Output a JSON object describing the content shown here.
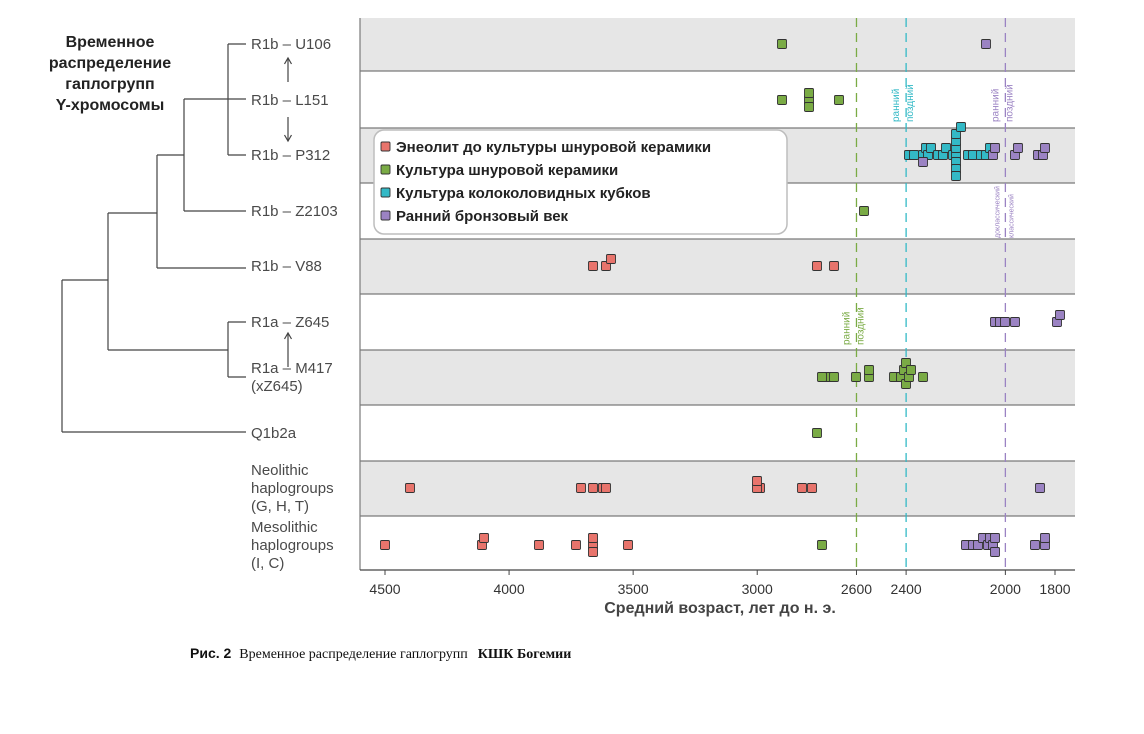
{
  "figure": {
    "caption_label": "Рис. 2",
    "caption_text": "Временное распределение гаплогрупп",
    "caption_tail": "КШК Богемии"
  },
  "chart_data": {
    "type": "scatter",
    "title": "Временное распределение гаплогрупп Y-хромосомы",
    "title_lines": [
      "Временное",
      "распределение",
      "гаплогрупп",
      "Y-хромосомы"
    ],
    "xlabel": "Средний возраст, лет до н. э.",
    "ylabel": "",
    "xlim": [
      4600,
      1700
    ],
    "x_reversed": true,
    "x_ticks": [
      4500,
      4000,
      3500,
      3000,
      2600,
      2400,
      2000,
      1800
    ],
    "grid": false,
    "legend_position": "upper-left",
    "rows": [
      {
        "key": "u106",
        "lines": [
          "R1b – U106"
        ]
      },
      {
        "key": "l151",
        "lines": [
          "R1b – L151"
        ]
      },
      {
        "key": "p312",
        "lines": [
          "R1b – P312"
        ]
      },
      {
        "key": "z2103",
        "lines": [
          "R1b – Z2103"
        ]
      },
      {
        "key": "v88",
        "lines": [
          "R1b – V88"
        ]
      },
      {
        "key": "z645",
        "lines": [
          "R1a – Z645"
        ]
      },
      {
        "key": "m417",
        "lines": [
          "R1a – M417",
          "(xZ645)"
        ]
      },
      {
        "key": "q1b2a",
        "lines": [
          "Q1b2a"
        ]
      },
      {
        "key": "neo",
        "lines": [
          "Neolithic",
          "haplogroups",
          "(G, H, T)"
        ]
      },
      {
        "key": "meso",
        "lines": [
          "Mesolithic",
          "haplogroups",
          "(I, C)"
        ]
      }
    ],
    "series": [
      {
        "name": "Энеолит до культуры шнуровой керамики",
        "color": "#e8746c",
        "points": [
          {
            "row": "v88",
            "x": 3660
          },
          {
            "row": "v88",
            "x": 3610
          },
          {
            "row": "v88",
            "x": 3590
          },
          {
            "row": "v88",
            "x": 2760
          },
          {
            "row": "v88",
            "x": 2690
          },
          {
            "row": "neo",
            "x": 4400
          },
          {
            "row": "neo",
            "x": 3710
          },
          {
            "row": "neo",
            "x": 3660
          },
          {
            "row": "neo",
            "x": 3620
          },
          {
            "row": "neo",
            "x": 3610
          },
          {
            "row": "neo",
            "x": 2990
          },
          {
            "row": "neo",
            "x": 3000
          },
          {
            "row": "neo",
            "x": 3000
          },
          {
            "row": "neo",
            "x": 2820
          },
          {
            "row": "neo",
            "x": 2780
          },
          {
            "row": "meso",
            "x": 4500
          },
          {
            "row": "meso",
            "x": 4110
          },
          {
            "row": "meso",
            "x": 4100
          },
          {
            "row": "meso",
            "x": 3880
          },
          {
            "row": "meso",
            "x": 3730
          },
          {
            "row": "meso",
            "x": 3660
          },
          {
            "row": "meso",
            "x": 3660
          },
          {
            "row": "meso",
            "x": 3660
          },
          {
            "row": "meso",
            "x": 3520
          }
        ]
      },
      {
        "name": "Культура шнуровой керамики",
        "color": "#7aab45",
        "points": [
          {
            "row": "u106",
            "x": 2900
          },
          {
            "row": "l151",
            "x": 2900
          },
          {
            "row": "l151",
            "x": 2790
          },
          {
            "row": "l151",
            "x": 2790
          },
          {
            "row": "l151",
            "x": 2790
          },
          {
            "row": "l151",
            "x": 2670
          },
          {
            "row": "z2103",
            "x": 2570
          },
          {
            "row": "m417",
            "x": 2720
          },
          {
            "row": "m417",
            "x": 2740
          },
          {
            "row": "m417",
            "x": 2690
          },
          {
            "row": "m417",
            "x": 2600
          },
          {
            "row": "m417",
            "x": 2550
          },
          {
            "row": "m417",
            "x": 2550
          },
          {
            "row": "m417",
            "x": 2450
          },
          {
            "row": "m417",
            "x": 2420
          },
          {
            "row": "m417",
            "x": 2410
          },
          {
            "row": "m417",
            "x": 2400
          },
          {
            "row": "m417",
            "x": 2390
          },
          {
            "row": "m417",
            "x": 2400
          },
          {
            "row": "m417",
            "x": 2380
          },
          {
            "row": "m417",
            "x": 2330
          },
          {
            "row": "q1b2a",
            "x": 2760
          },
          {
            "row": "meso",
            "x": 2740
          }
        ]
      },
      {
        "name": "Культура колоколовидных кубков",
        "color": "#33b9c6",
        "points": [
          {
            "row": "p312",
            "x": 2390
          },
          {
            "row": "p312",
            "x": 2370
          },
          {
            "row": "p312",
            "x": 2330
          },
          {
            "row": "p312",
            "x": 2320
          },
          {
            "row": "p312",
            "x": 2310
          },
          {
            "row": "p312",
            "x": 2300
          },
          {
            "row": "p312",
            "x": 2270
          },
          {
            "row": "p312",
            "x": 2250
          },
          {
            "row": "p312",
            "x": 2240
          },
          {
            "row": "p312",
            "x": 2210
          },
          {
            "row": "p312",
            "x": 2200
          },
          {
            "row": "p312",
            "x": 2200
          },
          {
            "row": "p312",
            "x": 2200
          },
          {
            "row": "p312",
            "x": 2200
          },
          {
            "row": "p312",
            "x": 2200
          },
          {
            "row": "p312",
            "x": 2200
          },
          {
            "row": "p312",
            "x": 2200
          },
          {
            "row": "p312",
            "x": 2180
          },
          {
            "row": "p312",
            "x": 2150
          },
          {
            "row": "p312",
            "x": 2130
          },
          {
            "row": "p312",
            "x": 2100
          },
          {
            "row": "p312",
            "x": 2080
          },
          {
            "row": "p312",
            "x": 2060
          }
        ]
      },
      {
        "name": "Ранний бронзовый век",
        "color": "#9b83c3",
        "points": [
          {
            "row": "u106",
            "x": 2080
          },
          {
            "row": "p312",
            "x": 2330
          },
          {
            "row": "p312",
            "x": 2050
          },
          {
            "row": "p312",
            "x": 2040
          },
          {
            "row": "p312",
            "x": 1960
          },
          {
            "row": "p312",
            "x": 1950
          },
          {
            "row": "p312",
            "x": 1870
          },
          {
            "row": "p312",
            "x": 1850
          },
          {
            "row": "p312",
            "x": 1840
          },
          {
            "row": "z645",
            "x": 2040
          },
          {
            "row": "z645",
            "x": 2020
          },
          {
            "row": "z645",
            "x": 2000
          },
          {
            "row": "z645",
            "x": 1960
          },
          {
            "row": "z645",
            "x": 1790
          },
          {
            "row": "z645",
            "x": 1780
          },
          {
            "row": "neo",
            "x": 1860
          },
          {
            "row": "meso",
            "x": 2160
          },
          {
            "row": "meso",
            "x": 2130
          },
          {
            "row": "meso",
            "x": 2110
          },
          {
            "row": "meso",
            "x": 2090
          },
          {
            "row": "meso",
            "x": 2070
          },
          {
            "row": "meso",
            "x": 2060
          },
          {
            "row": "meso",
            "x": 2050
          },
          {
            "row": "meso",
            "x": 2040
          },
          {
            "row": "meso",
            "x": 2040
          },
          {
            "row": "meso",
            "x": 1880
          },
          {
            "row": "meso",
            "x": 1840
          },
          {
            "row": "meso",
            "x": 1840
          }
        ]
      }
    ],
    "reference_lines": [
      {
        "x": 2600,
        "color": "#7aab45",
        "labels": [
          "ранний",
          "поздний"
        ]
      },
      {
        "x": 2400,
        "color": "#33b9c6",
        "labels": [
          "ранний",
          "поздний"
        ]
      },
      {
        "x": 2000,
        "color": "#9b83c3",
        "labels": [
          "ранний",
          "поздний"
        ],
        "sub_labels": [
          "доклассический",
          "классический"
        ]
      }
    ],
    "tree": [
      {
        "split": "root",
        "children": [
          "R1",
          "Q1b2a"
        ]
      },
      {
        "split": "R1",
        "children": [
          "R1b",
          "R1a"
        ]
      },
      {
        "split": "R1b",
        "children": [
          "R1b-a",
          "V88"
        ]
      },
      {
        "split": "R1b-a",
        "children": [
          "U106/L151/P312",
          "Z2103"
        ]
      },
      {
        "split": "R1a",
        "children": [
          "Z645",
          "M417 (xZ645)"
        ]
      }
    ]
  }
}
